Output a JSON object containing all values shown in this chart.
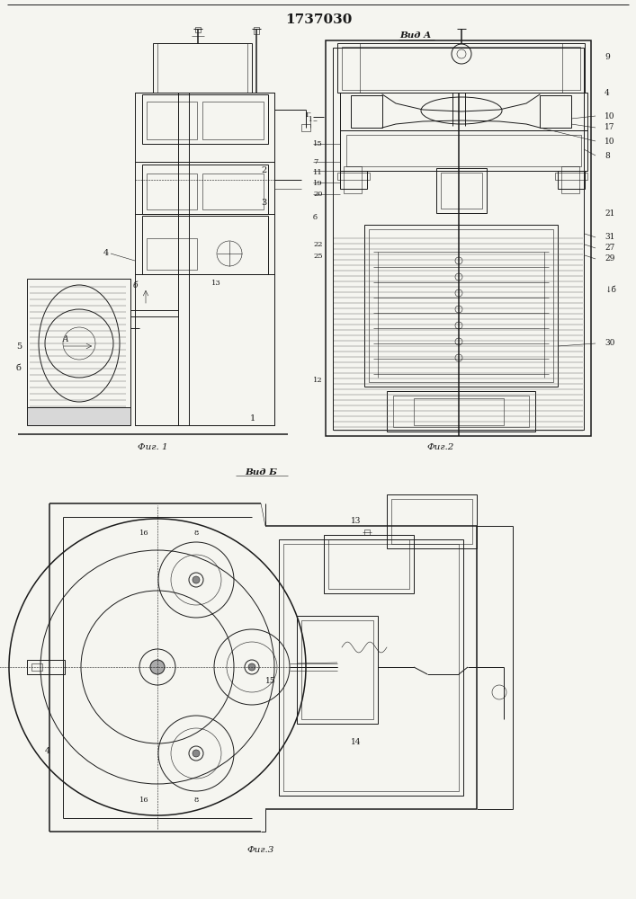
{
  "title": "1737030",
  "bg_color": "#f5f5f0",
  "line_color": "#1a1a1a",
  "fig1_label": "Фиг. 1",
  "fig2_label": "Фиг.2",
  "fig3_label": "Фиг.3",
  "vid_a_label": "Вид A",
  "vid_b_label": "Вид Б"
}
